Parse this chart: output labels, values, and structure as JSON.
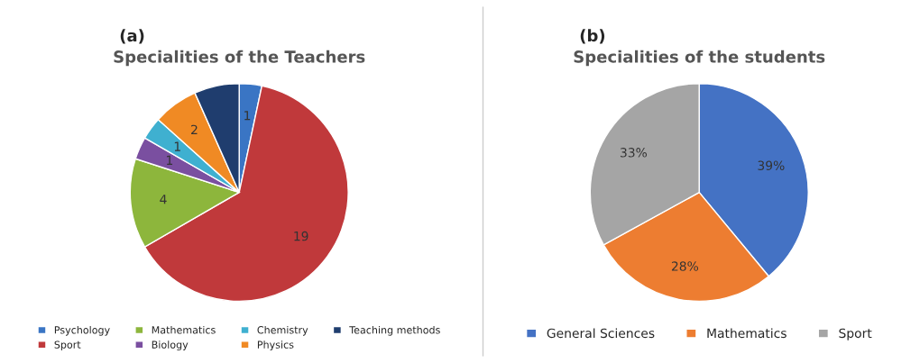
{
  "chart_data": [
    {
      "type": "pie",
      "title": "Specialities of the Teachers",
      "annotations": [
        "(a)"
      ],
      "categories": [
        "Psychology",
        "Sport",
        "Mathematics",
        "Biology",
        "Chemistry",
        "Physics",
        "Teaching methods"
      ],
      "values": [
        1,
        19,
        4,
        1,
        1,
        2,
        2
      ],
      "value_labels": [
        "1",
        "19",
        "4",
        "1",
        "1",
        "2",
        null
      ],
      "colors": [
        "#3a75c4",
        "#c0393b",
        "#8db63c",
        "#7a4fa0",
        "#3fb0d0",
        "#f08a24",
        "#1f3d6e"
      ],
      "legend": "bottom"
    },
    {
      "type": "pie",
      "title": "Specialities of the students",
      "annotations": [
        "(b)"
      ],
      "categories": [
        "General Sciences",
        "Mathematics",
        "Sport"
      ],
      "values": [
        39,
        28,
        33
      ],
      "value_labels": [
        "39%",
        "28%",
        "33%"
      ],
      "colors": [
        "#4472c4",
        "#ed7d31",
        "#a5a5a5"
      ],
      "legend": "bottom"
    }
  ]
}
